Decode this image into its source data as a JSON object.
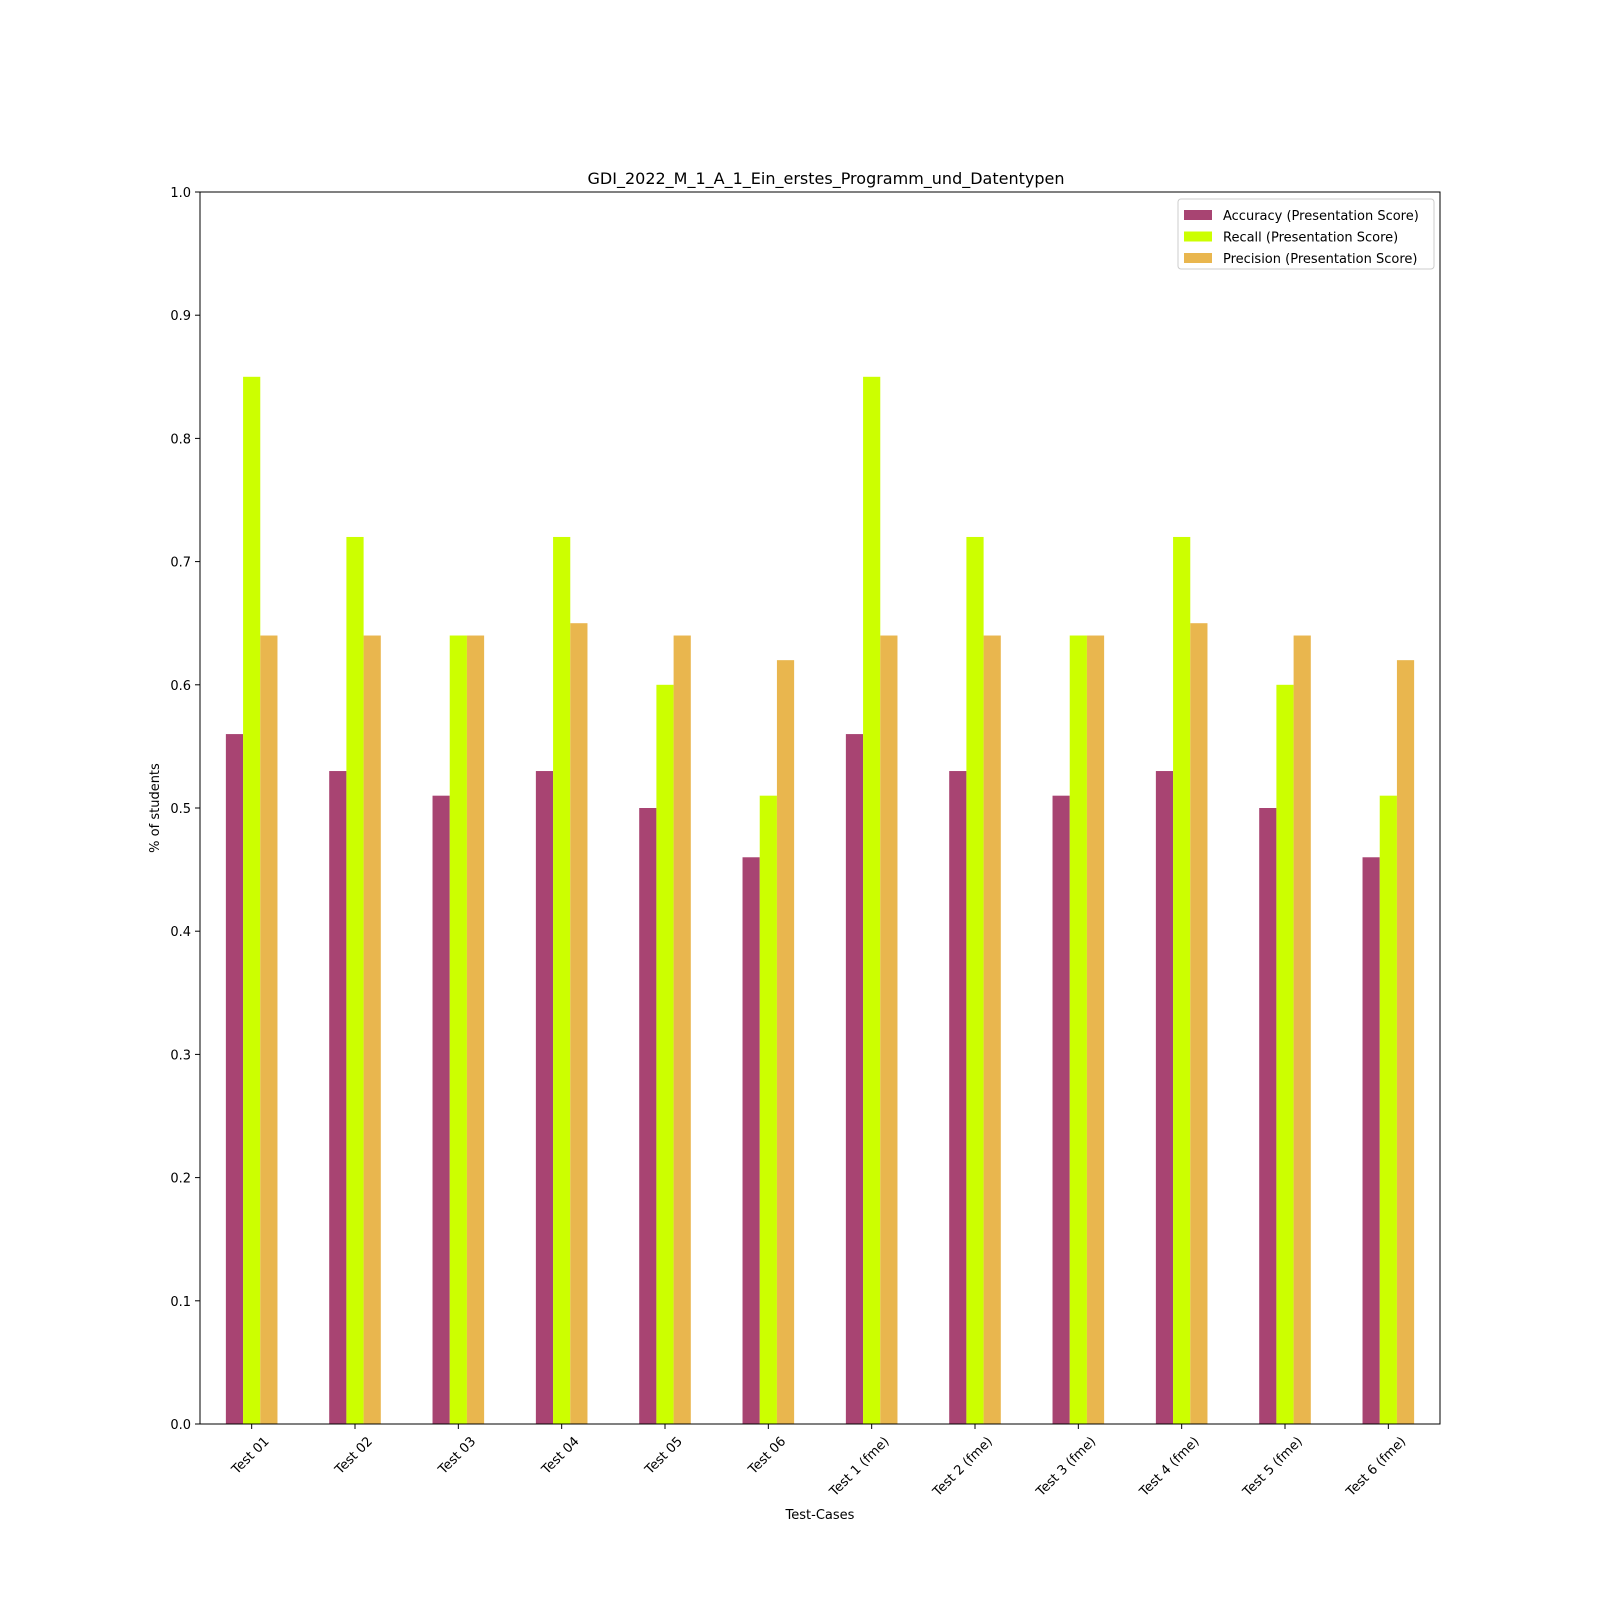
{
  "chart_data": {
    "type": "bar",
    "title": "GDI_2022_M_1_A_1_Ein_erstes_Programm_und_Datentypen",
    "xlabel": "Test-Cases",
    "ylabel": "% of students",
    "ylim": [
      0,
      1.0
    ],
    "yticks": [
      "0.0",
      "0.1",
      "0.2",
      "0.3",
      "0.4",
      "0.5",
      "0.6",
      "0.7",
      "0.8",
      "0.9",
      "1.0"
    ],
    "grid": false,
    "legend_position": "top-right",
    "categories": [
      "Test 01",
      "Test 02",
      "Test 03",
      "Test 04",
      "Test 05",
      "Test 06",
      "Test 1 (fme)",
      "Test 2 (fme)",
      "Test 3 (fme)",
      "Test 4 (fme)",
      "Test 5 (fme)",
      "Test 6 (fme)"
    ],
    "series": [
      {
        "name": "Accuracy (Presentation Score)",
        "color": "#a84472",
        "values": [
          0.56,
          0.53,
          0.51,
          0.53,
          0.5,
          0.46,
          0.56,
          0.53,
          0.51,
          0.53,
          0.5,
          0.46
        ]
      },
      {
        "name": "Recall (Presentation Score)",
        "color": "#ccff00",
        "values": [
          0.85,
          0.72,
          0.64,
          0.72,
          0.6,
          0.51,
          0.85,
          0.72,
          0.64,
          0.72,
          0.6,
          0.51
        ]
      },
      {
        "name": "Precision (Presentation Score)",
        "color": "#e9b64e",
        "values": [
          0.64,
          0.64,
          0.64,
          0.65,
          0.64,
          0.62,
          0.64,
          0.64,
          0.64,
          0.65,
          0.64,
          0.62
        ]
      }
    ]
  }
}
